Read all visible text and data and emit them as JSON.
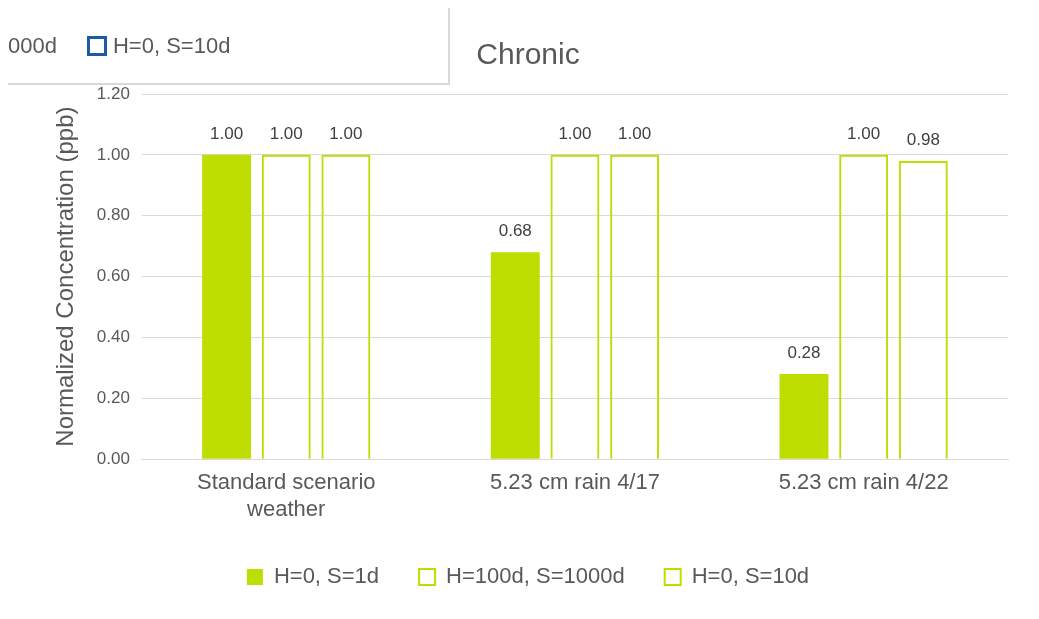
{
  "chart_data": {
    "type": "bar",
    "title": "Chronic",
    "ylabel": "Normalized Concentration (ppb)",
    "categories": [
      "Standard scenario weather",
      "5.23 cm rain 4/17",
      "5.23 cm rain 4/22"
    ],
    "series": [
      {
        "name": "H=0, S=1d",
        "color": "#bedd00",
        "values": [
          1.0,
          0.68,
          0.28
        ],
        "value_labels": [
          "1.00",
          "0.68",
          "0.28"
        ]
      },
      {
        "name": "H=100d, S=1000d",
        "color": "#bedd00",
        "values": [
          1.0,
          1.0,
          1.0
        ],
        "value_labels": [
          "1.00",
          "1.00",
          "1.00"
        ]
      },
      {
        "name": "H=0, S=10d",
        "color": "#bedd00",
        "values": [
          1.0,
          1.0,
          0.98
        ],
        "value_labels": [
          "1.00",
          "1.00",
          "0.98"
        ]
      }
    ],
    "ylim": [
      0,
      1.2
    ],
    "yticks": [
      {
        "value": 0,
        "label": "0.00"
      },
      {
        "value": 0.2,
        "label": "0.20"
      },
      {
        "value": 0.4,
        "label": "0.40"
      },
      {
        "value": 0.6,
        "label": "0.60"
      },
      {
        "value": 0.8,
        "label": "0.80"
      },
      {
        "value": 1.0,
        "label": "1.00"
      },
      {
        "value": 1.2,
        "label": "1.20"
      }
    ],
    "grid": "y",
    "legend": "bottom",
    "annotations": [
      "000d",
      "H=0, S=10d"
    ]
  }
}
